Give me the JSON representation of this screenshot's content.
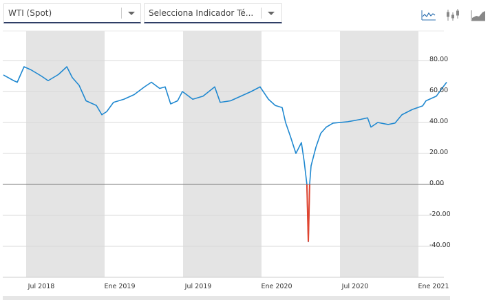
{
  "toolbar": {
    "series_select": "WTI (Spot)",
    "indicator_select": "Selecciona Indicador Té...",
    "chart_types": [
      "line-chart-icon",
      "candlestick-icon",
      "area-chart-icon"
    ]
  },
  "chart_data": {
    "type": "line",
    "title": "",
    "xlabel": "",
    "ylabel": "",
    "x_unit": "months since Ene 2018",
    "ylim": [
      -50,
      90
    ],
    "xlim": [
      4.0,
      38.3
    ],
    "y_ticks": [
      80,
      60,
      40,
      20,
      0,
      -20,
      -40
    ],
    "y_tick_labels": [
      "80.00",
      "60.00",
      "40.00",
      "20.00",
      "0.00",
      "-20.00",
      "-40.00"
    ],
    "x_ticks": [
      6,
      12,
      18,
      24,
      30,
      36
    ],
    "x_tick_labels": [
      "Jul 2018",
      "Ene 2019",
      "Jul 2019",
      "Ene 2020",
      "Jul 2020",
      "Ene 2021"
    ],
    "shaded_bands": [
      [
        6,
        12
      ],
      [
        18,
        24
      ],
      [
        30,
        36
      ]
    ],
    "colors": {
      "line": "#1f88d0",
      "negative": "#e0442f",
      "band": "#e4e4e4"
    },
    "series": [
      {
        "name": "WTI (Spot)",
        "x": [
          4.26,
          5.05,
          5.32,
          5.84,
          6.37,
          7.16,
          7.68,
          8.47,
          9.11,
          9.53,
          10.05,
          10.58,
          11.37,
          11.79,
          12.16,
          12.68,
          13.47,
          14.26,
          15.05,
          15.58,
          16.21,
          16.63,
          17.05,
          17.58,
          17.95,
          18.74,
          19.53,
          20.42,
          20.84,
          21.63,
          22.42,
          23.21,
          23.89,
          24.53,
          25.05,
          25.58,
          25.84,
          26.21,
          26.63,
          27.05,
          27.26,
          27.47,
          27.58,
          27.68,
          27.79,
          28.16,
          28.53,
          28.95,
          29.47,
          30.53,
          31.58,
          32.11,
          32.37,
          32.89,
          33.68,
          34.21,
          34.74,
          35.53,
          36.32,
          36.58,
          37.37,
          37.89,
          38.16
        ],
        "y": [
          70.7,
          67,
          66,
          76,
          74,
          70,
          67,
          71,
          76,
          69,
          64,
          54,
          51,
          45,
          47,
          53,
          55,
          58,
          63,
          66,
          62,
          63,
          52,
          54,
          60,
          55,
          57,
          63,
          53,
          54,
          57,
          60,
          63,
          55,
          51,
          49.6,
          40,
          31,
          20,
          27,
          15,
          0,
          -37,
          0,
          12,
          24,
          33,
          37,
          39.6,
          40.4,
          42,
          43,
          37,
          40,
          38.7,
          39.6,
          45,
          48.4,
          50.7,
          54,
          57,
          63,
          66
        ]
      }
    ]
  }
}
